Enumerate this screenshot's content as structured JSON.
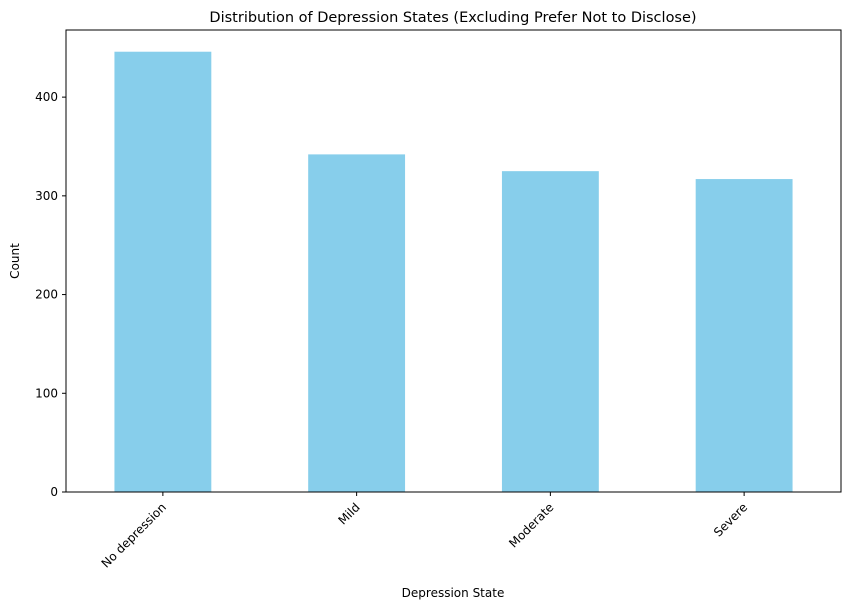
{
  "chart_data": {
    "type": "bar",
    "title": "Distribution of Depression States (Excluding Prefer Not to Disclose)",
    "xlabel": "Depression State",
    "ylabel": "Count",
    "categories": [
      "No depression",
      "Mild",
      "Moderate",
      "Severe"
    ],
    "values": [
      446,
      342,
      325,
      317
    ],
    "ylim": [
      0,
      468
    ],
    "yticks": [
      0,
      100,
      200,
      300,
      400
    ],
    "grid": false,
    "legend": "none",
    "bar_color": "#87CEEB",
    "xtick_rotation_deg": 45
  }
}
